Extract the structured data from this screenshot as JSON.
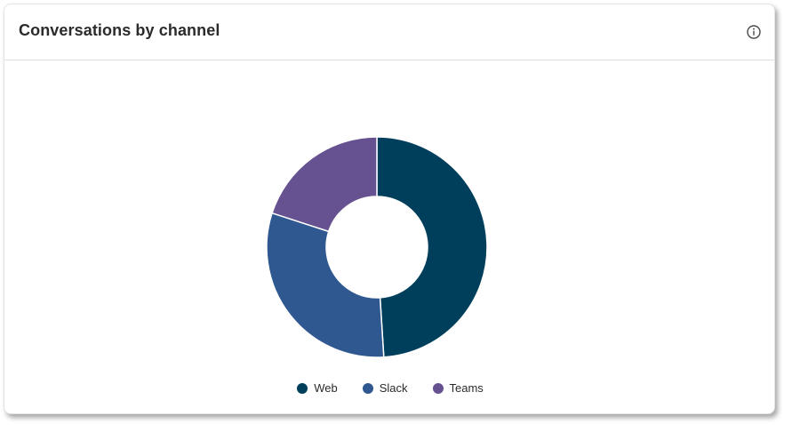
{
  "card": {
    "title": "Conversations by channel",
    "info_icon": "info-circle-icon"
  },
  "colors": {
    "Web": "#003f5c",
    "Slack": "#2f5891",
    "Teams": "#665191"
  },
  "chart_data": {
    "type": "pie",
    "variant": "donut",
    "title": "Conversations by channel",
    "categories": [
      "Web",
      "Slack",
      "Teams"
    ],
    "values": [
      49,
      31,
      20
    ],
    "legend": [
      "Web",
      "Slack",
      "Teams"
    ],
    "legend_position": "bottom"
  }
}
